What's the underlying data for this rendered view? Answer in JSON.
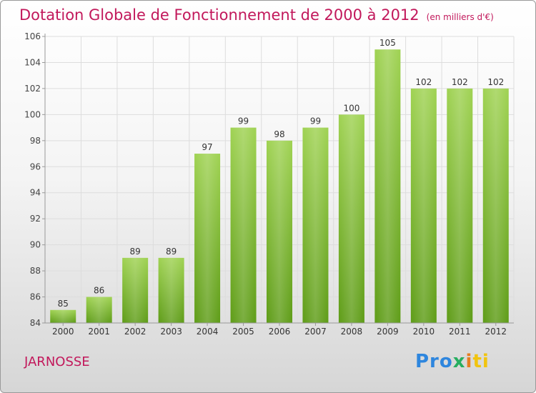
{
  "header": {
    "title": "Dotation Globale de Fonctionnement de 2000 à 2012",
    "unit": "(en milliers d'€)"
  },
  "commune": "JARNOSSE",
  "logo": {
    "parts": [
      "Pro",
      "x",
      "i",
      "ti"
    ]
  },
  "colors": {
    "title": "#c2185b",
    "bar_top": "#9fd252",
    "bar_bottom": "#5e9c17",
    "grid": "#dddddd",
    "axis": "#999999"
  },
  "chart_data": {
    "type": "bar",
    "categories": [
      "2000",
      "2001",
      "2002",
      "2003",
      "2004",
      "2005",
      "2006",
      "2007",
      "2008",
      "2009",
      "2010",
      "2011",
      "2012"
    ],
    "values": [
      85,
      86,
      89,
      89,
      97,
      99,
      98,
      99,
      100,
      105,
      102,
      102,
      102
    ],
    "ylim": [
      84,
      106
    ],
    "yticks": [
      84,
      86,
      88,
      90,
      92,
      94,
      96,
      98,
      100,
      102,
      104,
      106
    ],
    "grid": true,
    "data_labels": true
  }
}
